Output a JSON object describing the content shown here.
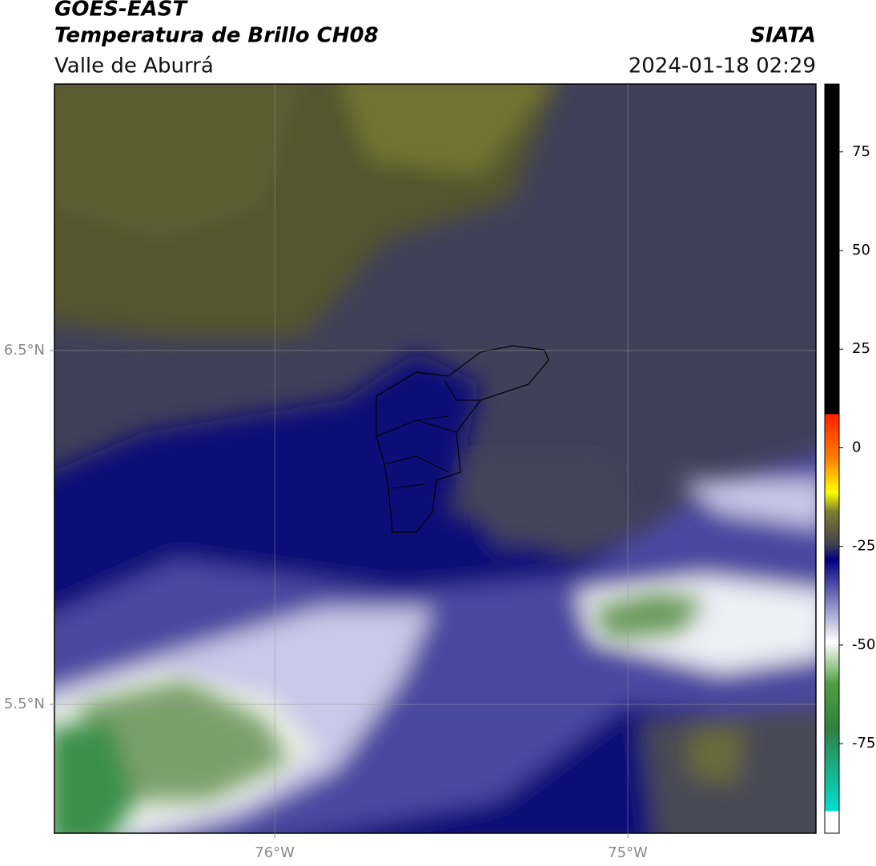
{
  "header": {
    "title": "GOES-EAST",
    "subtitle": "Temperatura de Brillo CH08",
    "region": "Valle de Aburrá",
    "source": "SIATA",
    "datetime": "2024-01-18 02:29"
  },
  "map": {
    "lon_range": [
      -76.624,
      -74.467
    ],
    "lat_range": [
      5.136,
      7.253
    ],
    "lon_ticks": [
      {
        "value": -76,
        "label": "76°W"
      },
      {
        "value": -75,
        "label": "75°W"
      }
    ],
    "lat_ticks": [
      {
        "value": 6.5,
        "label": "6.5°N"
      },
      {
        "value": 5.5,
        "label": "5.5°N"
      }
    ]
  },
  "colorbar": {
    "range": [
      -97.7,
      92.2
    ],
    "ticks": [
      75,
      50,
      25,
      0,
      -25,
      -50,
      -75
    ]
  }
}
